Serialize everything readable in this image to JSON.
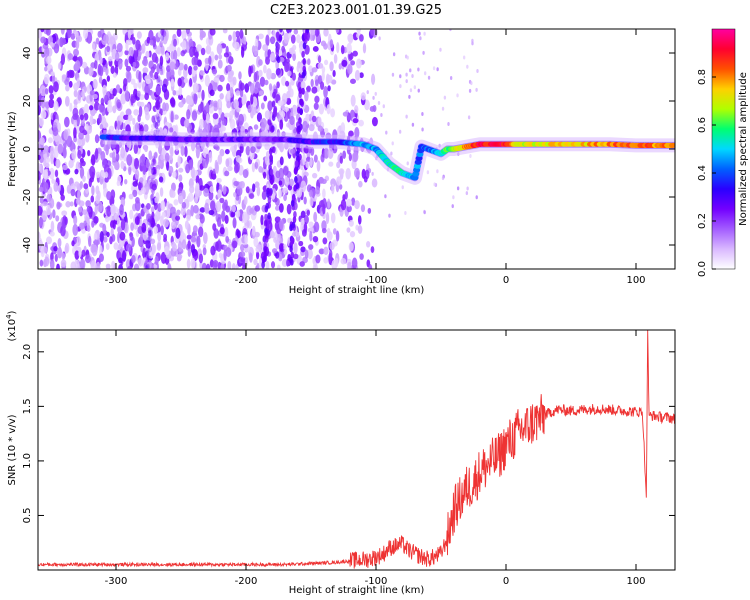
{
  "figure": {
    "title": "C2E3.2023.001.01.39.G25"
  },
  "chart_data": [
    {
      "type": "heatmap",
      "xlabel": "Height of straight line (km)",
      "ylabel": "Frequency (Hz)",
      "xlim": [
        -360,
        130
      ],
      "ylim": [
        -50,
        50
      ],
      "xticks": [
        -300,
        -200,
        -100,
        0,
        100
      ],
      "yticks": [
        -40,
        -20,
        0,
        20,
        40
      ],
      "colorbar": {
        "label": "Normalized spectral amplitude",
        "range": [
          0,
          1
        ],
        "ticks": [
          0.0,
          0.2,
          0.4,
          0.6,
          0.8
        ],
        "tick_labels": [
          "0.0",
          "0.2",
          "0.4",
          "0.6",
          "0.8"
        ],
        "colormap": [
          "#ffffff",
          "#d9b8ff",
          "#a35cff",
          "#7300ff",
          "#2a00ff",
          "#0060ff",
          "#00d8ff",
          "#00ff70",
          "#b0ff00",
          "#ffd000",
          "#ff5000",
          "#ff0030",
          "#ff00a0"
        ]
      },
      "ridge": {
        "x": [
          -310,
          -290,
          -270,
          -250,
          -230,
          -210,
          -190,
          -170,
          -160,
          -150,
          -140,
          -130,
          -120,
          -110,
          -100,
          -95,
          -90,
          -85,
          -80,
          -75,
          -70,
          -65,
          -60,
          -55,
          -50,
          -45,
          -40,
          -35,
          -30,
          -25,
          -20,
          -10,
          0,
          10,
          20,
          40,
          60,
          80,
          100,
          115,
          130
        ],
        "y": [
          5,
          4.5,
          4.5,
          4,
          4,
          4,
          4,
          4,
          3.5,
          3,
          3,
          3,
          2.5,
          2,
          0,
          -3,
          -6,
          -8,
          -10,
          -11,
          -12,
          1,
          0,
          -1,
          -2,
          0,
          0,
          0.5,
          1,
          1.5,
          2,
          2,
          2,
          2,
          2,
          2,
          2,
          2,
          1.5,
          1.5,
          1.5
        ],
        "amplitude": [
          0.35,
          0.3,
          0.3,
          0.25,
          0.25,
          0.25,
          0.25,
          0.25,
          0.3,
          0.3,
          0.35,
          0.35,
          0.4,
          0.45,
          0.45,
          0.5,
          0.5,
          0.55,
          0.55,
          0.5,
          0.45,
          0.4,
          0.4,
          0.45,
          0.55,
          0.6,
          0.65,
          0.7,
          0.8,
          0.85,
          0.9,
          0.9,
          0.9,
          0.7,
          0.7,
          0.75,
          0.75,
          0.8,
          0.85,
          0.8,
          0.8
        ]
      }
    },
    {
      "type": "line",
      "xlabel": "Height of straight line (km)",
      "ylabel": "SNR (10 * v/v)",
      "y_multiplier": "(x10",
      "y_multiplier_exp": "4",
      "y_multiplier_close": ")",
      "xlim": [
        -360,
        130
      ],
      "ylim": [
        0,
        2.2
      ],
      "xticks": [
        -300,
        -200,
        -100,
        0,
        100
      ],
      "yticks": [
        0.5,
        1.0,
        1.5,
        2.0
      ],
      "ytick_labels": [
        "0.5",
        "1.0",
        "1.5",
        "2.0"
      ],
      "color": "#ee3333",
      "series": [
        {
          "x": [
            -360,
            -300,
            -250,
            -200,
            -170,
            -150,
            -130,
            -115,
            -105,
            -100,
            -95,
            -90,
            -85,
            -80,
            -75,
            -70,
            -65,
            -60,
            -55,
            -50,
            -45,
            -40,
            -35,
            -30,
            -25,
            -20,
            -15,
            -10,
            -5,
            0,
            5,
            10,
            15,
            20,
            25,
            30,
            35,
            40,
            50,
            60,
            70,
            80,
            90,
            100,
            105,
            108,
            109,
            110,
            115,
            120,
            125,
            130
          ],
          "y": [
            0.05,
            0.05,
            0.05,
            0.05,
            0.05,
            0.06,
            0.07,
            0.09,
            0.1,
            0.12,
            0.14,
            0.2,
            0.22,
            0.24,
            0.18,
            0.15,
            0.12,
            0.1,
            0.12,
            0.15,
            0.3,
            0.55,
            0.65,
            0.75,
            0.8,
            0.9,
            0.95,
            1.0,
            1.05,
            1.15,
            1.2,
            1.28,
            1.3,
            1.35,
            1.38,
            1.42,
            1.45,
            1.47,
            1.46,
            1.47,
            1.48,
            1.47,
            1.46,
            1.45,
            1.45,
            0.65,
            2.2,
            1.42,
            1.41,
            1.4,
            1.4,
            1.38
          ]
        }
      ]
    }
  ]
}
